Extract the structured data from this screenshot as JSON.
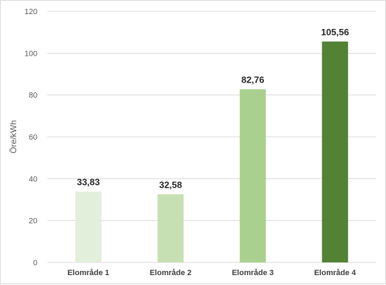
{
  "chart_data": {
    "type": "bar",
    "categories": [
      "Elområde 1",
      "Elområde 2",
      "Elområde 3",
      "Elområde 4"
    ],
    "values": [
      33.83,
      32.58,
      82.76,
      105.56
    ],
    "data_labels": [
      "33,83",
      "32,58",
      "82,76",
      "105,56"
    ],
    "bar_colors": [
      "#e2efda",
      "#c6e0b4",
      "#a9d08e",
      "#548235"
    ],
    "ylabel": "Öre/kWh",
    "ylim": [
      0,
      120
    ],
    "yticks": [
      0,
      20,
      40,
      60,
      80,
      100,
      120
    ],
    "grid": true,
    "legend": "none"
  }
}
